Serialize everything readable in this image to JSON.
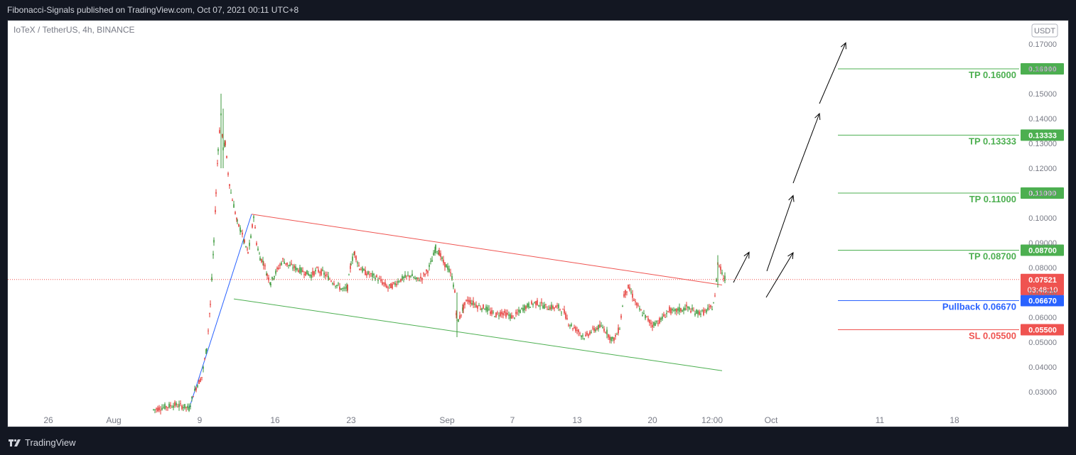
{
  "header": {
    "published_text": "Fibonacci-Signals published on TradingView.com, Oct 07, 2021 00:11 UTC+8"
  },
  "chart_header": {
    "symbol_text": "IoTeX / TetherUS, 4h, BINANCE"
  },
  "currency_badge": "USDT",
  "footer": {
    "brand": "TradingView"
  },
  "colors": {
    "up": "#26a69a",
    "up_body": "#3c9a3c",
    "down": "#e53935",
    "tp_green": "#4caf50",
    "pullback_blue": "#2962ff",
    "sl_red": "#ef5350",
    "grid_bg": "#ffffff",
    "price_red": "#ef5350"
  },
  "chart_data": {
    "type": "candlestick",
    "symbol": "IoTeX / TetherUS",
    "interval": "4h",
    "exchange": "BINANCE",
    "y_ticks": [
      "0.17000",
      "0.16000",
      "0.15000",
      "0.14000",
      "0.13000",
      "0.12000",
      "0.11000",
      "0.10000",
      "0.09000",
      "0.08000",
      "0.07000",
      "0.06000",
      "0.05000",
      "0.04000",
      "0.03000"
    ],
    "x_ticks": [
      "26",
      "Aug",
      "9",
      "16",
      "23",
      "Sep",
      "7",
      "13",
      "20",
      "12:00",
      "Oct",
      "11",
      "18"
    ],
    "ylim": [
      0.023,
      0.178
    ],
    "last_price": "0.07521",
    "countdown": "03:48:10",
    "levels": [
      {
        "label": "TP 0.16000",
        "value": 0.16,
        "badge": "0.16000",
        "kind": "tp"
      },
      {
        "label": "TP 0.13333",
        "value": 0.13333,
        "badge": "0.13333",
        "kind": "tp"
      },
      {
        "label": "TP 0.11000",
        "value": 0.11,
        "badge": "0.11000",
        "kind": "tp"
      },
      {
        "label": "TP 0.08700",
        "value": 0.087,
        "badge": "0.08700",
        "kind": "tp"
      },
      {
        "label": "Pullback 0.06670",
        "value": 0.0667,
        "badge": "0.06670",
        "kind": "pullback"
      },
      {
        "label": "SL 0.05500",
        "value": 0.055,
        "badge": "0.05500",
        "kind": "sl"
      }
    ],
    "price_path": [
      [
        0,
        0.0228
      ],
      [
        14,
        0.0238
      ],
      [
        30,
        0.0248
      ],
      [
        44,
        0.024
      ],
      [
        50,
        0.0232
      ],
      [
        56,
        0.029
      ],
      [
        62,
        0.033
      ],
      [
        68,
        0.036
      ],
      [
        75,
        0.048
      ],
      [
        80,
        0.065
      ],
      [
        85,
        0.09
      ],
      [
        88,
        0.11
      ],
      [
        91,
        0.128
      ],
      [
        95,
        0.142
      ],
      [
        98,
        0.128
      ],
      [
        101,
        0.13
      ],
      [
        105,
        0.118
      ],
      [
        109,
        0.11
      ],
      [
        113,
        0.105
      ],
      [
        118,
        0.098
      ],
      [
        123,
        0.095
      ],
      [
        128,
        0.09
      ],
      [
        133,
        0.086
      ],
      [
        137,
        0.092
      ],
      [
        141,
        0.101
      ],
      [
        145,
        0.09
      ],
      [
        150,
        0.084
      ],
      [
        155,
        0.082
      ],
      [
        160,
        0.077
      ],
      [
        165,
        0.074
      ],
      [
        170,
        0.077
      ],
      [
        176,
        0.08
      ],
      [
        182,
        0.083
      ],
      [
        190,
        0.081
      ],
      [
        198,
        0.08
      ],
      [
        206,
        0.079
      ],
      [
        214,
        0.078
      ],
      [
        222,
        0.077
      ],
      [
        230,
        0.079
      ],
      [
        238,
        0.078
      ],
      [
        246,
        0.076
      ],
      [
        254,
        0.074
      ],
      [
        262,
        0.072
      ],
      [
        268,
        0.071
      ],
      [
        273,
        0.072
      ],
      [
        278,
        0.082
      ],
      [
        283,
        0.086
      ],
      [
        290,
        0.08
      ],
      [
        298,
        0.078
      ],
      [
        306,
        0.077
      ],
      [
        314,
        0.076
      ],
      [
        322,
        0.074
      ],
      [
        330,
        0.072
      ],
      [
        338,
        0.073
      ],
      [
        346,
        0.075
      ],
      [
        354,
        0.076
      ],
      [
        362,
        0.077
      ],
      [
        370,
        0.075
      ],
      [
        378,
        0.076
      ],
      [
        386,
        0.079
      ],
      [
        392,
        0.083
      ],
      [
        397,
        0.088
      ],
      [
        402,
        0.086
      ],
      [
        408,
        0.082
      ],
      [
        414,
        0.08
      ],
      [
        420,
        0.076
      ],
      [
        424,
        0.07
      ],
      [
        427,
        0.058
      ],
      [
        431,
        0.06
      ],
      [
        436,
        0.064
      ],
      [
        442,
        0.067
      ],
      [
        448,
        0.066
      ],
      [
        454,
        0.065
      ],
      [
        460,
        0.064
      ],
      [
        466,
        0.064
      ],
      [
        474,
        0.062
      ],
      [
        482,
        0.061
      ],
      [
        490,
        0.062
      ],
      [
        498,
        0.061
      ],
      [
        506,
        0.06
      ],
      [
        514,
        0.062
      ],
      [
        522,
        0.064
      ],
      [
        530,
        0.065
      ],
      [
        538,
        0.066
      ],
      [
        546,
        0.065
      ],
      [
        554,
        0.064
      ],
      [
        562,
        0.064
      ],
      [
        570,
        0.064
      ],
      [
        578,
        0.062
      ],
      [
        584,
        0.058
      ],
      [
        590,
        0.056
      ],
      [
        596,
        0.055
      ],
      [
        602,
        0.053
      ],
      [
        608,
        0.052
      ],
      [
        614,
        0.054
      ],
      [
        620,
        0.055
      ],
      [
        626,
        0.056
      ],
      [
        632,
        0.056
      ],
      [
        638,
        0.054
      ],
      [
        642,
        0.052
      ],
      [
        646,
        0.051
      ],
      [
        650,
        0.052
      ],
      [
        656,
        0.056
      ],
      [
        662,
        0.069
      ],
      [
        668,
        0.072
      ],
      [
        672,
        0.07
      ],
      [
        678,
        0.066
      ],
      [
        684,
        0.063
      ],
      [
        690,
        0.061
      ],
      [
        696,
        0.059
      ],
      [
        702,
        0.057
      ],
      [
        708,
        0.058
      ],
      [
        714,
        0.059
      ],
      [
        720,
        0.061
      ],
      [
        726,
        0.063
      ],
      [
        732,
        0.062
      ],
      [
        738,
        0.063
      ],
      [
        744,
        0.063
      ],
      [
        750,
        0.064
      ],
      [
        756,
        0.063
      ],
      [
        762,
        0.062
      ],
      [
        768,
        0.062
      ],
      [
        774,
        0.062
      ],
      [
        780,
        0.063
      ],
      [
        786,
        0.064
      ],
      [
        790,
        0.068
      ],
      [
        794,
        0.082
      ],
      [
        798,
        0.08
      ],
      [
        802,
        0.076
      ],
      [
        806,
        0.0752
      ]
    ],
    "channel_upper": [
      [
        138,
        0.1015
      ],
      [
        800,
        0.073
      ]
    ],
    "channel_lower": [
      [
        113,
        0.0674
      ],
      [
        800,
        0.0385
      ]
    ],
    "impulse_line": [
      [
        50,
        0.0232
      ],
      [
        138,
        0.1015
      ]
    ],
    "arrows": [
      [
        [
          816,
          0.074
        ],
        [
          838,
          0.0862
        ]
      ],
      [
        [
          863,
          0.0786
        ],
        [
          900,
          0.109
        ]
      ],
      [
        [
          900,
          0.114
        ],
        [
          937,
          0.142
        ]
      ],
      [
        [
          937,
          0.146
        ],
        [
          974,
          0.1705
        ]
      ],
      [
        [
          862,
          0.068
        ],
        [
          900,
          0.086
        ]
      ]
    ]
  }
}
